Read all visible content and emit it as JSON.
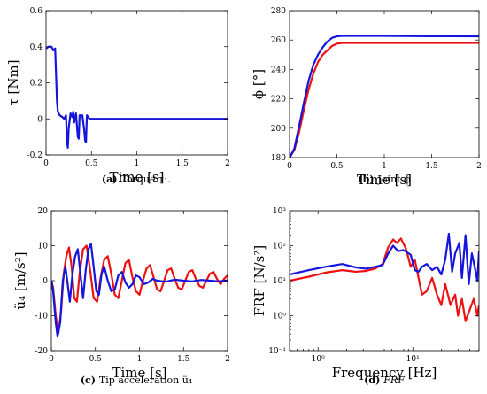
{
  "colors": {
    "red": "#ee1111",
    "blue": "#1515dd"
  },
  "chart_data": [
    {
      "id": "a",
      "type": "line",
      "ylabel": "τ [Nm]",
      "xlabel": "Time [s]",
      "xlim": [
        0,
        2
      ],
      "ylim": [
        -0.2,
        0.6
      ],
      "xscale": "linear",
      "yscale": "linear",
      "xticks": [
        "0",
        "0.5",
        "1",
        "1.5",
        "2"
      ],
      "yticks": [
        "-0.2",
        "0",
        "0.2",
        "0.4",
        "0.6"
      ],
      "caption": {
        "tag": "(a)",
        "text": "Torque τ₁."
      },
      "series": [
        {
          "color": "blue",
          "points": [
            [
              0,
              0.39
            ],
            [
              0.03,
              0.4
            ],
            [
              0.06,
              0.4
            ],
            [
              0.08,
              0.38
            ],
            [
              0.1,
              0.39
            ],
            [
              0.11,
              0.25
            ],
            [
              0.12,
              0.1
            ],
            [
              0.13,
              0.04
            ],
            [
              0.15,
              0.02
            ],
            [
              0.18,
              0.01
            ],
            [
              0.2,
              0.0
            ],
            [
              0.22,
              0.02
            ],
            [
              0.23,
              -0.12
            ],
            [
              0.24,
              -0.16
            ],
            [
              0.25,
              -0.05
            ],
            [
              0.27,
              0.03
            ],
            [
              0.29,
              0.01
            ],
            [
              0.3,
              0.04
            ],
            [
              0.31,
              -0.02
            ],
            [
              0.33,
              0.03
            ],
            [
              0.35,
              -0.1
            ],
            [
              0.36,
              -0.11
            ],
            [
              0.37,
              0.02
            ],
            [
              0.4,
              0.02
            ],
            [
              0.42,
              -0.06
            ],
            [
              0.43,
              -0.12
            ],
            [
              0.44,
              -0.13
            ],
            [
              0.45,
              0.02
            ],
            [
              0.48,
              0.0
            ],
            [
              0.55,
              0.0
            ],
            [
              1.0,
              0.0
            ],
            [
              1.5,
              0.0
            ],
            [
              2.0,
              0.0
            ]
          ]
        }
      ]
    },
    {
      "id": "b",
      "type": "line",
      "ylabel": "ϕ [°]",
      "xlabel": "Time [s]",
      "xlim": [
        0,
        2
      ],
      "ylim": [
        180,
        280
      ],
      "xscale": "linear",
      "yscale": "linear",
      "xticks": [
        "0",
        "0.5",
        "1",
        "1.5",
        "2"
      ],
      "yticks": [
        "180",
        "200",
        "220",
        "240",
        "260",
        "280"
      ],
      "caption": {
        "tag": "(b)",
        "text": "Joint ϕ"
      },
      "series": [
        {
          "color": "red",
          "points": [
            [
              0,
              180
            ],
            [
              0.05,
              185
            ],
            [
              0.1,
              197
            ],
            [
              0.15,
              212
            ],
            [
              0.2,
              226
            ],
            [
              0.25,
              237
            ],
            [
              0.3,
              245
            ],
            [
              0.35,
              250
            ],
            [
              0.4,
              253
            ],
            [
              0.45,
              256
            ],
            [
              0.5,
              257.5
            ],
            [
              0.55,
              258
            ],
            [
              1.0,
              258
            ],
            [
              1.5,
              258
            ],
            [
              2.0,
              258
            ]
          ]
        },
        {
          "color": "blue",
          "points": [
            [
              0,
              180
            ],
            [
              0.05,
              186
            ],
            [
              0.1,
              201
            ],
            [
              0.15,
              217
            ],
            [
              0.2,
              232
            ],
            [
              0.25,
              243
            ],
            [
              0.3,
              250
            ],
            [
              0.35,
              255
            ],
            [
              0.4,
              259
            ],
            [
              0.45,
              261.5
            ],
            [
              0.5,
              262.5
            ],
            [
              0.55,
              262.8
            ],
            [
              1.0,
              262.8
            ],
            [
              1.5,
              262.6
            ],
            [
              2.0,
              262.5
            ]
          ]
        }
      ]
    },
    {
      "id": "c",
      "type": "line",
      "ylabel": "ü₄ [m/s²]",
      "xlabel": "Time [s]",
      "xlim": [
        0,
        2
      ],
      "ylim": [
        -20,
        20
      ],
      "xscale": "linear",
      "yscale": "linear",
      "xticks": [
        "0",
        "0.5",
        "1",
        "1.5",
        "2"
      ],
      "yticks": [
        "-20",
        "-10",
        "0",
        "10",
        "20"
      ],
      "caption": {
        "tag": "(c)",
        "text": "Tip acceleration ü₄"
      },
      "series": [
        {
          "color": "red",
          "points": [
            [
              0,
              0
            ],
            [
              0.02,
              -2
            ],
            [
              0.05,
              -10
            ],
            [
              0.08,
              -15
            ],
            [
              0.11,
              -9
            ],
            [
              0.14,
              2
            ],
            [
              0.17,
              7
            ],
            [
              0.2,
              9.5
            ],
            [
              0.23,
              4
            ],
            [
              0.26,
              -5
            ],
            [
              0.29,
              -6
            ],
            [
              0.32,
              2
            ],
            [
              0.36,
              9
            ],
            [
              0.4,
              10
            ],
            [
              0.44,
              3
            ],
            [
              0.48,
              -5
            ],
            [
              0.52,
              -6
            ],
            [
              0.56,
              1
            ],
            [
              0.6,
              6
            ],
            [
              0.64,
              7
            ],
            [
              0.68,
              2
            ],
            [
              0.72,
              -4
            ],
            [
              0.76,
              -5
            ],
            [
              0.8,
              0
            ],
            [
              0.84,
              5
            ],
            [
              0.88,
              6
            ],
            [
              0.92,
              1
            ],
            [
              0.96,
              -3
            ],
            [
              1.0,
              -4
            ],
            [
              1.04,
              0
            ],
            [
              1.08,
              3.5
            ],
            [
              1.12,
              4.5
            ],
            [
              1.16,
              1
            ],
            [
              1.2,
              -2.5
            ],
            [
              1.24,
              -3
            ],
            [
              1.28,
              0
            ],
            [
              1.32,
              3
            ],
            [
              1.36,
              3.5
            ],
            [
              1.4,
              0.5
            ],
            [
              1.44,
              -2
            ],
            [
              1.48,
              -2.5
            ],
            [
              1.52,
              0
            ],
            [
              1.56,
              2.5
            ],
            [
              1.6,
              3
            ],
            [
              1.64,
              0.5
            ],
            [
              1.68,
              -1.5
            ],
            [
              1.72,
              -2
            ],
            [
              1.76,
              0
            ],
            [
              1.8,
              2
            ],
            [
              1.84,
              2.5
            ],
            [
              1.88,
              0.5
            ],
            [
              1.92,
              -1
            ],
            [
              1.96,
              0.5
            ],
            [
              2.0,
              1.5
            ]
          ]
        },
        {
          "color": "blue",
          "points": [
            [
              0,
              0
            ],
            [
              0.02,
              -3
            ],
            [
              0.05,
              -12
            ],
            [
              0.07,
              -16
            ],
            [
              0.1,
              -12
            ],
            [
              0.13,
              0
            ],
            [
              0.16,
              4
            ],
            [
              0.19,
              -2
            ],
            [
              0.21,
              -6
            ],
            [
              0.24,
              2
            ],
            [
              0.27,
              7
            ],
            [
              0.3,
              9
            ],
            [
              0.33,
              2
            ],
            [
              0.36,
              -5
            ],
            [
              0.39,
              3
            ],
            [
              0.42,
              9
            ],
            [
              0.45,
              10.5
            ],
            [
              0.48,
              4
            ],
            [
              0.51,
              -3
            ],
            [
              0.54,
              -4
            ],
            [
              0.57,
              2
            ],
            [
              0.6,
              4
            ],
            [
              0.64,
              0
            ],
            [
              0.68,
              -3
            ],
            [
              0.72,
              -2.5
            ],
            [
              0.76,
              1.5
            ],
            [
              0.8,
              2.5
            ],
            [
              0.84,
              -0.5
            ],
            [
              0.88,
              -2
            ],
            [
              0.92,
              -1
            ],
            [
              0.96,
              1.5
            ],
            [
              1.0,
              1
            ],
            [
              1.05,
              -1
            ],
            [
              1.1,
              -0.5
            ],
            [
              1.15,
              0.5
            ],
            [
              1.2,
              0
            ],
            [
              1.3,
              -0.3
            ],
            [
              1.4,
              0.3
            ],
            [
              1.5,
              0
            ],
            [
              1.6,
              -0.2
            ],
            [
              1.7,
              0.2
            ],
            [
              1.8,
              0
            ],
            [
              1.9,
              -0.2
            ],
            [
              2.0,
              0.1
            ]
          ]
        }
      ]
    },
    {
      "id": "d",
      "type": "line",
      "ylabel": "FRF [N/s²]",
      "xlabel": "Frequency [Hz]",
      "xlim": [
        0.5,
        50
      ],
      "ylim": [
        0.1,
        1000
      ],
      "xscale": "log",
      "yscale": "log",
      "xticks": [
        "10⁰",
        "10¹"
      ],
      "yticks": [
        "10⁻¹",
        "10⁰",
        "10¹",
        "10²",
        "10³"
      ],
      "caption": {
        "tag": "(d)",
        "text": "FRF"
      },
      "series": [
        {
          "color": "red",
          "points": [
            [
              0.5,
              10
            ],
            [
              0.8,
              13
            ],
            [
              1.2,
              17
            ],
            [
              1.8,
              20
            ],
            [
              2.5,
              18
            ],
            [
              3.2,
              19
            ],
            [
              4.0,
              22
            ],
            [
              4.8,
              30
            ],
            [
              5.5,
              90
            ],
            [
              6.2,
              150
            ],
            [
              6.8,
              120
            ],
            [
              7.5,
              160
            ],
            [
              8.5,
              80
            ],
            [
              9.5,
              25
            ],
            [
              10.5,
              40
            ],
            [
              11.5,
              12
            ],
            [
              12.5,
              4
            ],
            [
              14,
              5
            ],
            [
              16,
              12
            ],
            [
              18,
              4
            ],
            [
              20,
              2
            ],
            [
              22,
              8
            ],
            [
              25,
              2
            ],
            [
              28,
              4
            ],
            [
              30,
              1
            ],
            [
              33,
              3
            ],
            [
              36,
              0.7
            ],
            [
              40,
              1.5
            ],
            [
              44,
              3
            ],
            [
              48,
              1
            ],
            [
              50,
              2
            ]
          ]
        },
        {
          "color": "blue",
          "points": [
            [
              0.5,
              15
            ],
            [
              0.8,
              20
            ],
            [
              1.2,
              25
            ],
            [
              1.8,
              30
            ],
            [
              2.5,
              24
            ],
            [
              3.2,
              22
            ],
            [
              4.0,
              25
            ],
            [
              4.8,
              28
            ],
            [
              5.5,
              60
            ],
            [
              6.2,
              100
            ],
            [
              7.0,
              70
            ],
            [
              8.0,
              75
            ],
            [
              9.5,
              55
            ],
            [
              10.5,
              20
            ],
            [
              11.5,
              18
            ],
            [
              12.5,
              25
            ],
            [
              14,
              30
            ],
            [
              16,
              20
            ],
            [
              18,
              25
            ],
            [
              20,
              15
            ],
            [
              22,
              40
            ],
            [
              24,
              220
            ],
            [
              26,
              18
            ],
            [
              28,
              60
            ],
            [
              31,
              120
            ],
            [
              33,
              12
            ],
            [
              36,
              200
            ],
            [
              39,
              8
            ],
            [
              42,
              60
            ],
            [
              45,
              25
            ],
            [
              48,
              10
            ],
            [
              50,
              70
            ]
          ]
        }
      ]
    }
  ]
}
